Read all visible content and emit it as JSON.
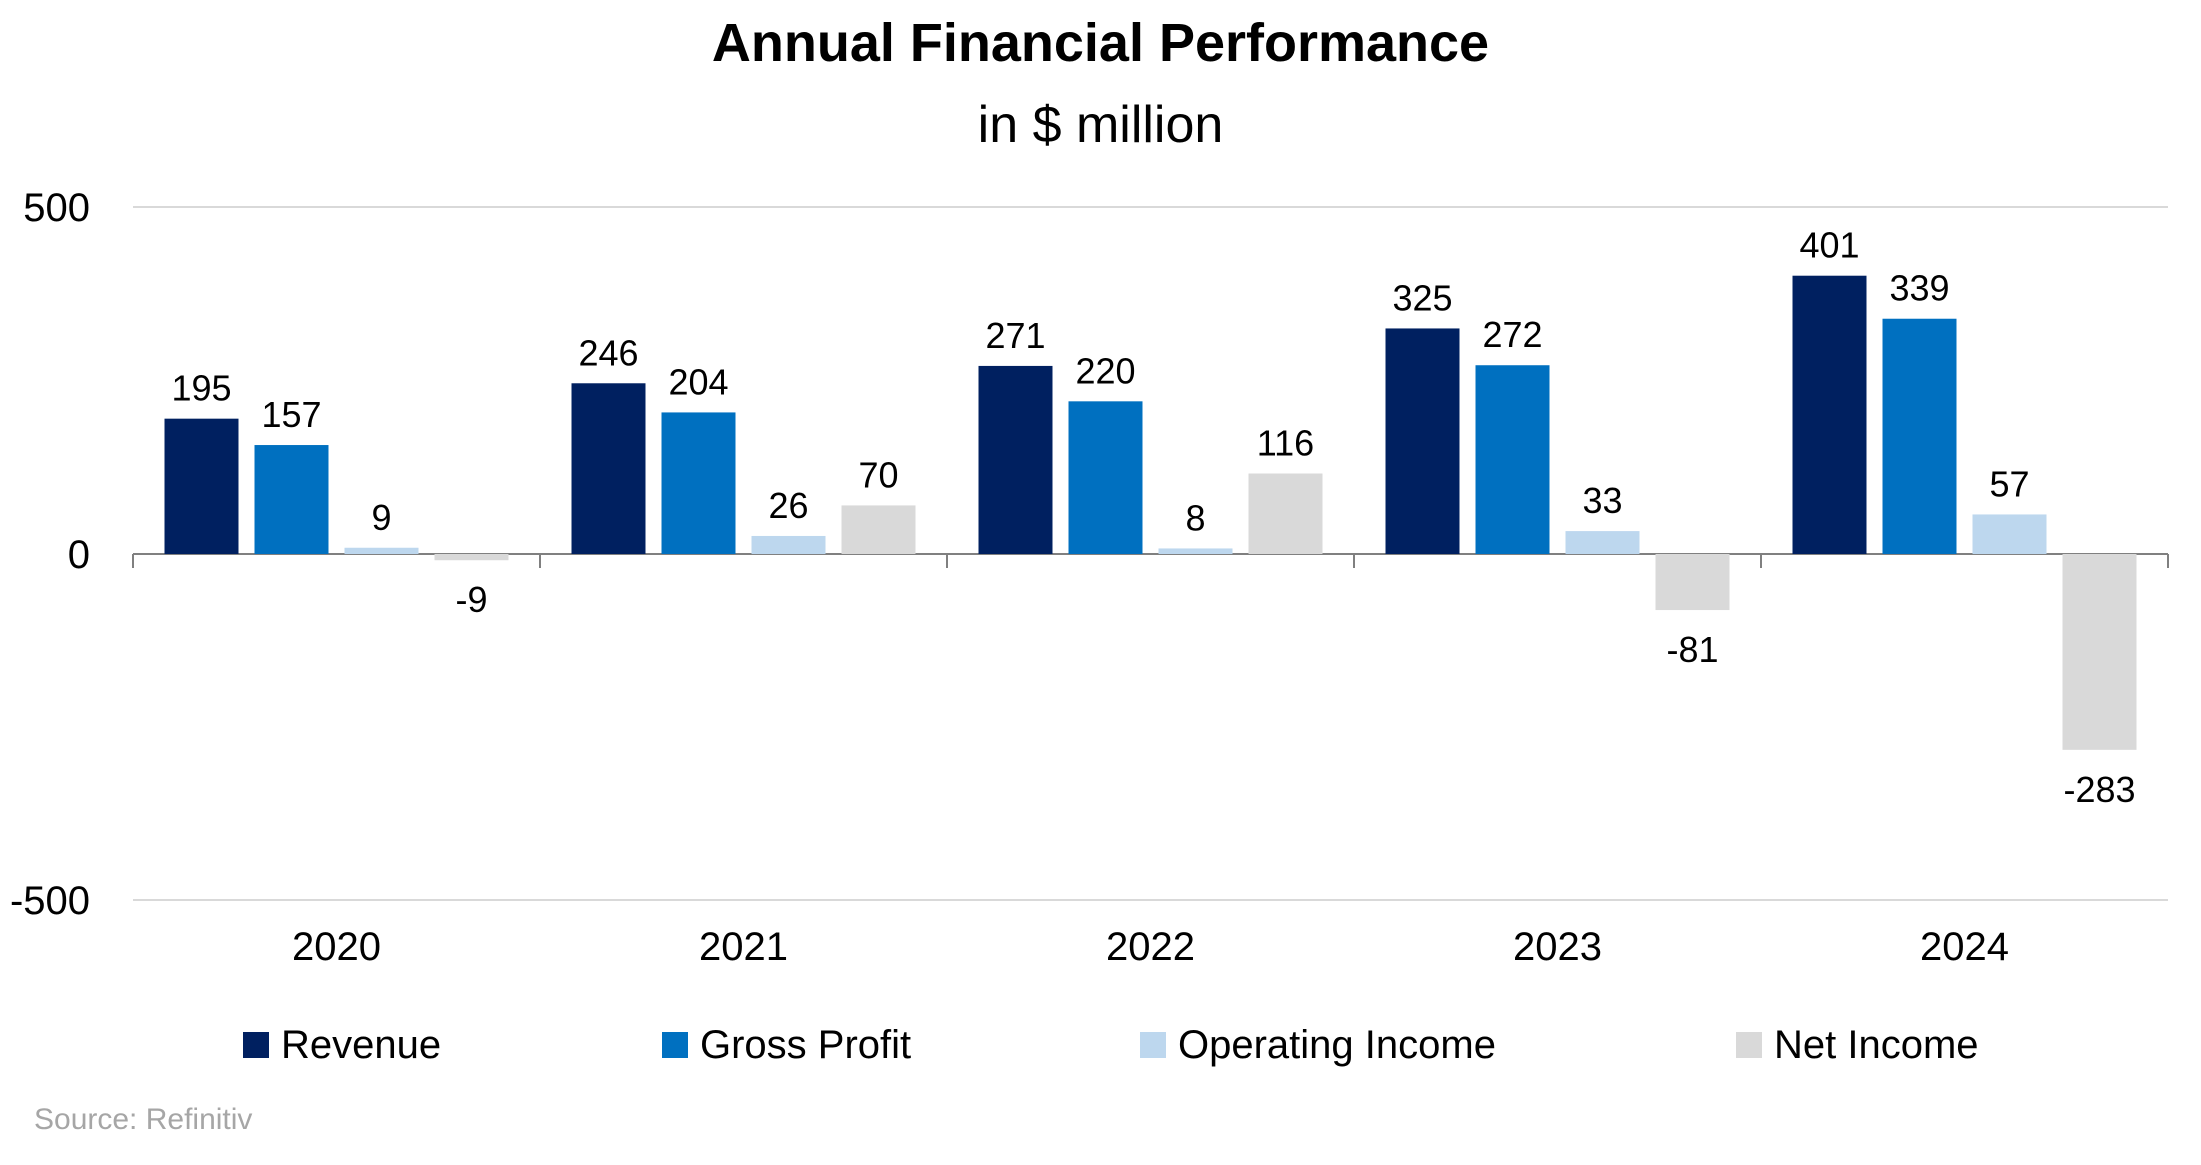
{
  "title": "Annual Financial Performance",
  "subtitle": "in $ million",
  "source": "Source: Refinitiv",
  "chart_data": {
    "type": "bar",
    "title": "Annual Financial Performance",
    "subtitle": "in $ million",
    "categories": [
      "2020",
      "2021",
      "2022",
      "2023",
      "2024"
    ],
    "series": [
      {
        "name": "Revenue",
        "color": "#002060",
        "values": [
          195,
          246,
          271,
          325,
          401
        ]
      },
      {
        "name": "Gross Profit",
        "color": "#0070c0",
        "values": [
          157,
          204,
          220,
          272,
          339
        ]
      },
      {
        "name": "Operating Income",
        "color": "#bdd7ee",
        "values": [
          9,
          26,
          8,
          33,
          57
        ]
      },
      {
        "name": "Net Income",
        "color": "#d9d9d9",
        "values": [
          -9,
          70,
          116,
          -81,
          -283
        ]
      }
    ],
    "ylim": [
      -500,
      500
    ],
    "yticks": [
      "500",
      "0",
      "-500"
    ],
    "grid": true,
    "legend_position": "bottom",
    "data_labels": true
  }
}
